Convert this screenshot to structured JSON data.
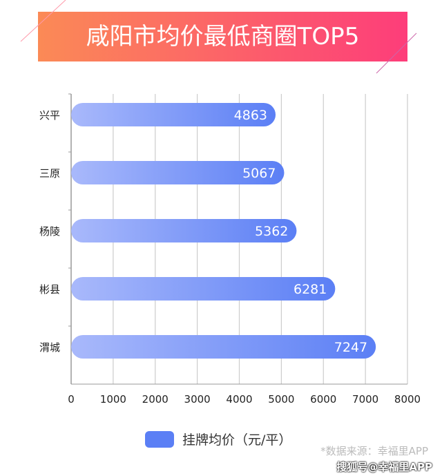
{
  "chart_data": {
    "type": "bar",
    "orientation": "horizontal",
    "title": "咸阳市均价最低商圈TOP5",
    "categories": [
      "兴平",
      "三原",
      "杨陵",
      "彬县",
      "渭城"
    ],
    "series": [
      {
        "name": "挂牌均价（元/平）",
        "values": [
          4863,
          5067,
          5362,
          6281,
          7247
        ]
      }
    ],
    "xlim": [
      0,
      8000
    ],
    "xticks": [
      0,
      1000,
      2000,
      3000,
      4000,
      5000,
      6000,
      7000,
      8000
    ],
    "grid": true,
    "legend": "bottom",
    "colors": {
      "bar_start": "#a9b9fb",
      "bar_end": "#5b7ff5",
      "banner_start": "#fb8a56",
      "banner_end": "#fd3d7a"
    }
  },
  "footer": {
    "source": "*数据来源：幸福里APP",
    "watermark": "搜狐号@幸福里APP"
  }
}
